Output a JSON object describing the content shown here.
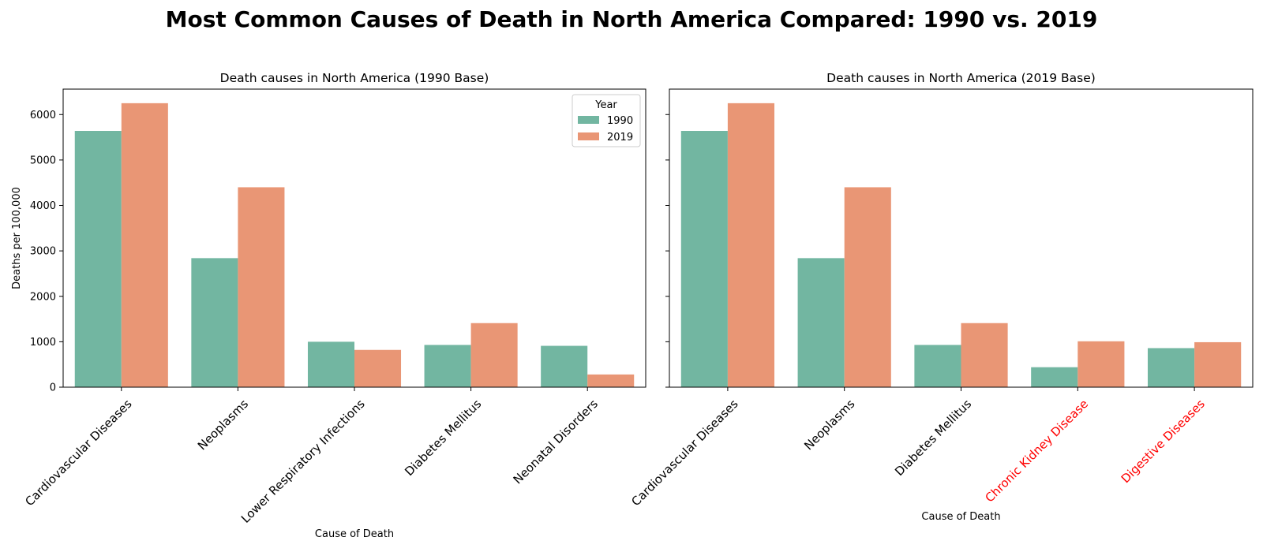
{
  "figure": {
    "title": "Most Common Causes of Death in North America Compared: 1990 vs. 2019"
  },
  "colors": {
    "series_1990": "#72b6a1",
    "series_2019": "#e99675",
    "highlight_label": "#ff0000",
    "axis": "#000000"
  },
  "chart_data": [
    {
      "type": "bar",
      "title": "Death causes in North America (1990 Base)",
      "xlabel": "Cause of Death",
      "ylabel": "Deaths per 100,000",
      "ylim": [
        0,
        6560
      ],
      "yticks": [
        0,
        1000,
        2000,
        3000,
        4000,
        5000,
        6000
      ],
      "grid": false,
      "legend": {
        "title": "Year",
        "placement": "top-right",
        "entries": [
          "1990",
          "2019"
        ]
      },
      "categories": [
        "Cardiovascular Diseases",
        "Neoplasms",
        "Lower Respiratory Infections",
        "Diabetes Mellitus",
        "Neonatal Disorders"
      ],
      "highlighted_categories": [],
      "series": [
        {
          "name": "1990",
          "values": [
            5640,
            2840,
            1000,
            930,
            910
          ]
        },
        {
          "name": "2019",
          "values": [
            6250,
            4400,
            820,
            1410,
            280
          ]
        }
      ]
    },
    {
      "type": "bar",
      "title": "Death causes in North America (2019 Base)",
      "xlabel": "Cause of Death",
      "ylabel": "",
      "ylim": [
        0,
        6560
      ],
      "yticks": [
        0,
        1000,
        2000,
        3000,
        4000,
        5000,
        6000
      ],
      "grid": false,
      "categories": [
        "Cardiovascular Diseases",
        "Neoplasms",
        "Diabetes Mellitus",
        "Chronic Kidney Disease",
        "Digestive Diseases"
      ],
      "highlighted_categories": [
        "Chronic Kidney Disease",
        "Digestive Diseases"
      ],
      "series": [
        {
          "name": "1990",
          "values": [
            5640,
            2840,
            930,
            440,
            860
          ]
        },
        {
          "name": "2019",
          "values": [
            6250,
            4400,
            1410,
            1010,
            990
          ]
        }
      ]
    }
  ]
}
